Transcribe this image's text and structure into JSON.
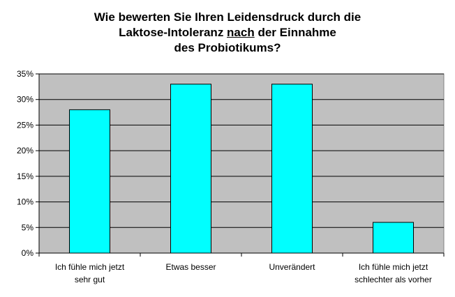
{
  "chart_data": {
    "type": "bar",
    "title": {
      "line1": "Wie bewerten Sie Ihren Leidensdruck durch die",
      "line2_pre": "Laktose-Intoleranz ",
      "line2_underlined": "nach",
      "line2_post": " der Einnahme",
      "line3": "des Probiotikums?"
    },
    "categories": [
      [
        "Ich fühle mich jetzt",
        "sehr gut"
      ],
      [
        "Etwas besser"
      ],
      [
        "Unverändert"
      ],
      [
        "Ich fühle mich jetzt",
        "schlechter als vorher"
      ]
    ],
    "values": [
      28,
      33,
      33,
      6
    ],
    "yticks": [
      "0%",
      "5%",
      "10%",
      "15%",
      "20%",
      "25%",
      "30%",
      "35%"
    ],
    "ylim": [
      0,
      35
    ],
    "grid": true,
    "legend": "none",
    "colors": {
      "bar_fill": "#00ffff",
      "bar_stroke": "#000000",
      "plot_bg": "#c0c0c0",
      "axis": "#000000"
    }
  }
}
